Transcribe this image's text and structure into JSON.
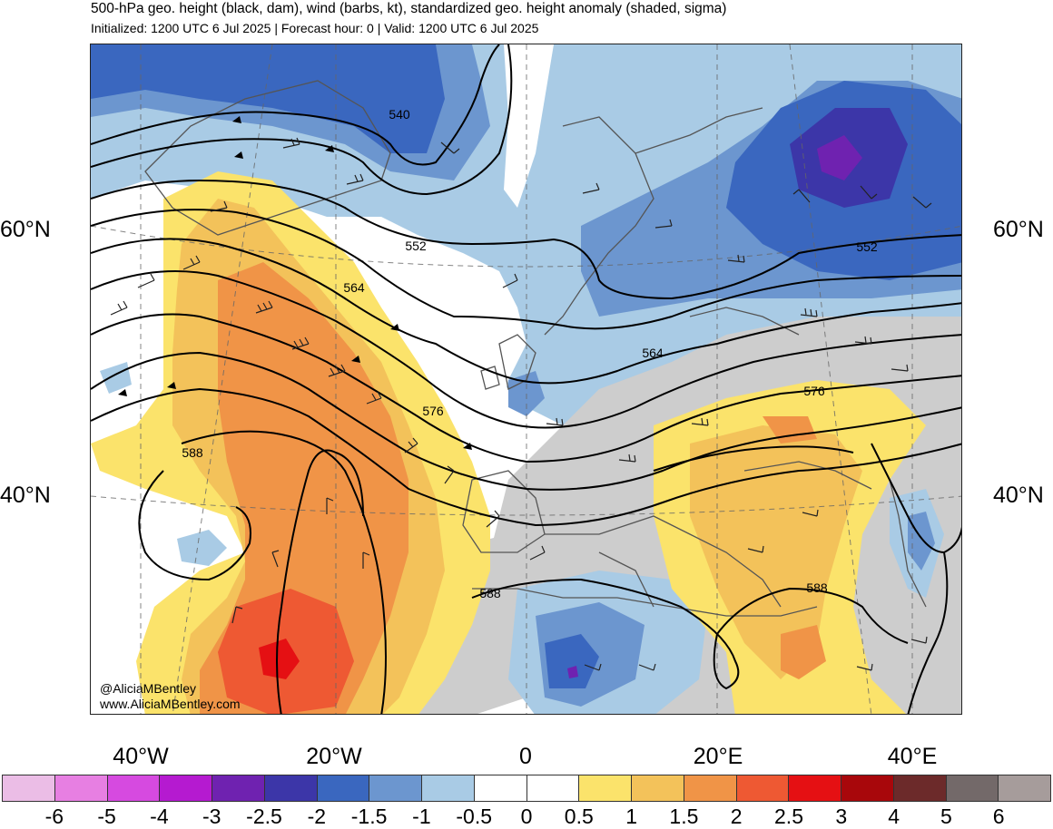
{
  "header": {
    "title": "500-hPa geo. height (black, dam), wind (barbs, kt), standardized geo. height anomaly (shaded, sigma)",
    "subtitle": "Initialized: 1200 UTC 6 Jul 2025 | Forecast hour: 0 | Valid: 1200 UTC 6 Jul 2025"
  },
  "map": {
    "lat_labels_left": [
      "60°N",
      "40°N"
    ],
    "lat_labels_right": [
      "60°N",
      "40°N"
    ],
    "lon_labels": [
      "40°W",
      "20°W",
      "0",
      "20°E",
      "40°E"
    ],
    "contour_labels": [
      "540",
      "552",
      "552",
      "564",
      "564",
      "576",
      "576",
      "588",
      "588",
      "588"
    ],
    "credit_handle": "@AliciaMBentley",
    "credit_site": "www.AliciaMBentley.com"
  },
  "colorbar": {
    "colors": [
      "#ebbde6",
      "#e77fe2",
      "#d64ae0",
      "#b51ad0",
      "#6f22b0",
      "#3c36a8",
      "#3a67bf",
      "#6c96cf",
      "#a9cbe5",
      "#ffffff",
      "#ffffff",
      "#fbe36b",
      "#f3c25a",
      "#f09447",
      "#ee5933",
      "#e51013",
      "#a8070b",
      "#6c2a2a",
      "#736969",
      "#a69c9b"
    ],
    "ticks": [
      "-6",
      "-5",
      "-4",
      "-3",
      "-2.5",
      "-2",
      "-1.5",
      "-1",
      "-0.5",
      "0",
      "0.5",
      "1",
      "1.5",
      "2",
      "2.5",
      "3",
      "4",
      "5",
      "6"
    ]
  },
  "palette": {
    "neg05": "#a9cbe5",
    "neg10": "#6c96cf",
    "neg15": "#3a67bf",
    "neg20": "#3c36a8",
    "neg25": "#6f22b0",
    "pos05": "#fbe36b",
    "pos10": "#f3c25a",
    "pos15": "#f09447",
    "pos20": "#ee5933",
    "pos25": "#e51013",
    "land_gray": "#cdcdcd"
  }
}
